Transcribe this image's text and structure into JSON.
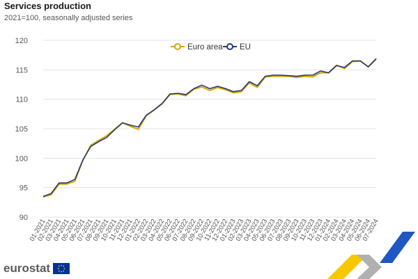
{
  "header": {
    "title": "Services production",
    "subtitle": "2021=100, seasonally adjusted series"
  },
  "brand": {
    "name": "eurostat"
  },
  "colors": {
    "euro_area": "#d6a400",
    "eu": "#213a73",
    "grid": "#e3e3e3",
    "accent_blue": "#1f57c3",
    "accent_yellow": "#f7c800"
  },
  "chart_data": {
    "type": "line",
    "title": "Services production",
    "subtitle": "2021=100, seasonally adjusted series",
    "xlabel": "",
    "ylabel": "",
    "ylim": [
      90,
      120
    ],
    "yticks": [
      90,
      95,
      100,
      105,
      110,
      115,
      120
    ],
    "grid": true,
    "legend_position": "top-center",
    "categories": [
      "01-2021",
      "02-2021",
      "03-2021",
      "04-2021",
      "05-2021",
      "06-2021",
      "07-2021",
      "08-2021",
      "09-2021",
      "10-2021",
      "11-2021",
      "12-2021",
      "01-2022",
      "02-2022",
      "03-2022",
      "04-2022",
      "05-2022",
      "06-2022",
      "07-2022",
      "08-2022",
      "09-2022",
      "10-2022",
      "11-2022",
      "12-2022",
      "01-2023",
      "02-2023",
      "03-2023",
      "04-2023",
      "05-2023",
      "06-2023",
      "07-2023",
      "08-2023",
      "09-2023",
      "10-2023",
      "11-2023",
      "12-2023",
      "01-2024",
      "02-2024",
      "03-2024",
      "04-2024",
      "05-2024",
      "06-2024",
      "07-2024"
    ],
    "series": [
      {
        "name": "Euro area",
        "color": "#d6a400",
        "values": [
          93.4,
          93.8,
          95.6,
          95.6,
          96.1,
          99.6,
          102.2,
          103.0,
          103.8,
          104.9,
          106.0,
          105.4,
          104.9,
          107.2,
          108.2,
          109.2,
          110.8,
          110.9,
          110.6,
          111.7,
          112.1,
          111.5,
          112.0,
          111.6,
          111.1,
          111.3,
          112.8,
          112.0,
          113.8,
          113.9,
          113.9,
          113.9,
          113.7,
          113.9,
          113.8,
          114.5,
          114.5,
          115.8,
          115.2,
          116.4,
          116.5,
          115.5,
          116.8
        ]
      },
      {
        "name": "EU",
        "color": "#213a73",
        "values": [
          93.5,
          94.0,
          95.8,
          95.8,
          96.4,
          99.7,
          102.0,
          102.8,
          103.5,
          104.8,
          106.0,
          105.6,
          105.3,
          107.3,
          108.2,
          109.3,
          110.9,
          111.0,
          110.8,
          111.8,
          112.4,
          111.8,
          112.2,
          111.8,
          111.3,
          111.5,
          113.0,
          112.3,
          113.9,
          114.1,
          114.1,
          114.0,
          113.9,
          114.1,
          114.1,
          114.8,
          114.5,
          115.7,
          115.4,
          116.5,
          116.5,
          115.5,
          116.9
        ]
      }
    ]
  }
}
